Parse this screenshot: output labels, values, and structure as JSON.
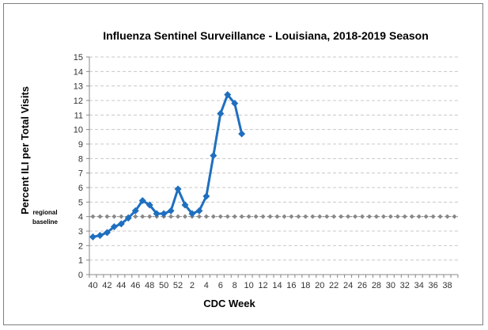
{
  "chart_data": {
    "type": "line",
    "title": "Influenza Sentinel Surveillance - Louisiana, 2018-2019 Season",
    "xlabel": "CDC Week",
    "ylabel": "Percent ILI per Total Visits",
    "ylim": [
      0,
      15
    ],
    "yticks": [
      "0",
      "1",
      "2",
      "3",
      "4",
      "5",
      "6",
      "7",
      "8",
      "9",
      "10",
      "11",
      "12",
      "13",
      "14",
      "15"
    ],
    "x_categories": [
      "40",
      "41",
      "42",
      "43",
      "44",
      "45",
      "46",
      "47",
      "48",
      "49",
      "50",
      "51",
      "52",
      "1",
      "2",
      "3",
      "4",
      "5",
      "6",
      "7",
      "8",
      "9",
      "10",
      "11",
      "12",
      "13",
      "14",
      "15",
      "16",
      "17",
      "18",
      "19",
      "20",
      "21",
      "22",
      "23",
      "24",
      "25",
      "26",
      "27",
      "28",
      "29",
      "30",
      "31",
      "32",
      "33",
      "34",
      "35",
      "36",
      "37",
      "38",
      "39"
    ],
    "xtick_labels": [
      "40",
      "42",
      "44",
      "46",
      "48",
      "50",
      "52",
      "2",
      "4",
      "6",
      "8",
      "10",
      "12",
      "14",
      "16",
      "18",
      "20",
      "22",
      "24",
      "26",
      "28",
      "30",
      "32",
      "34",
      "36",
      "38"
    ],
    "grid": true,
    "series": [
      {
        "values": [
          2.6,
          2.7,
          2.9,
          3.3,
          3.5,
          3.9,
          4.4,
          5.1,
          4.8,
          4.2,
          4.2,
          4.4,
          5.9,
          4.8,
          4.2,
          4.4,
          5.4,
          8.2,
          11.1,
          12.4,
          11.8,
          9.7
        ],
        "color": "#1f6fbf"
      }
    ],
    "baseline": {
      "label_line1": "regional",
      "label_line2": "baseline",
      "value": 4.0,
      "color": "#888888"
    }
  }
}
